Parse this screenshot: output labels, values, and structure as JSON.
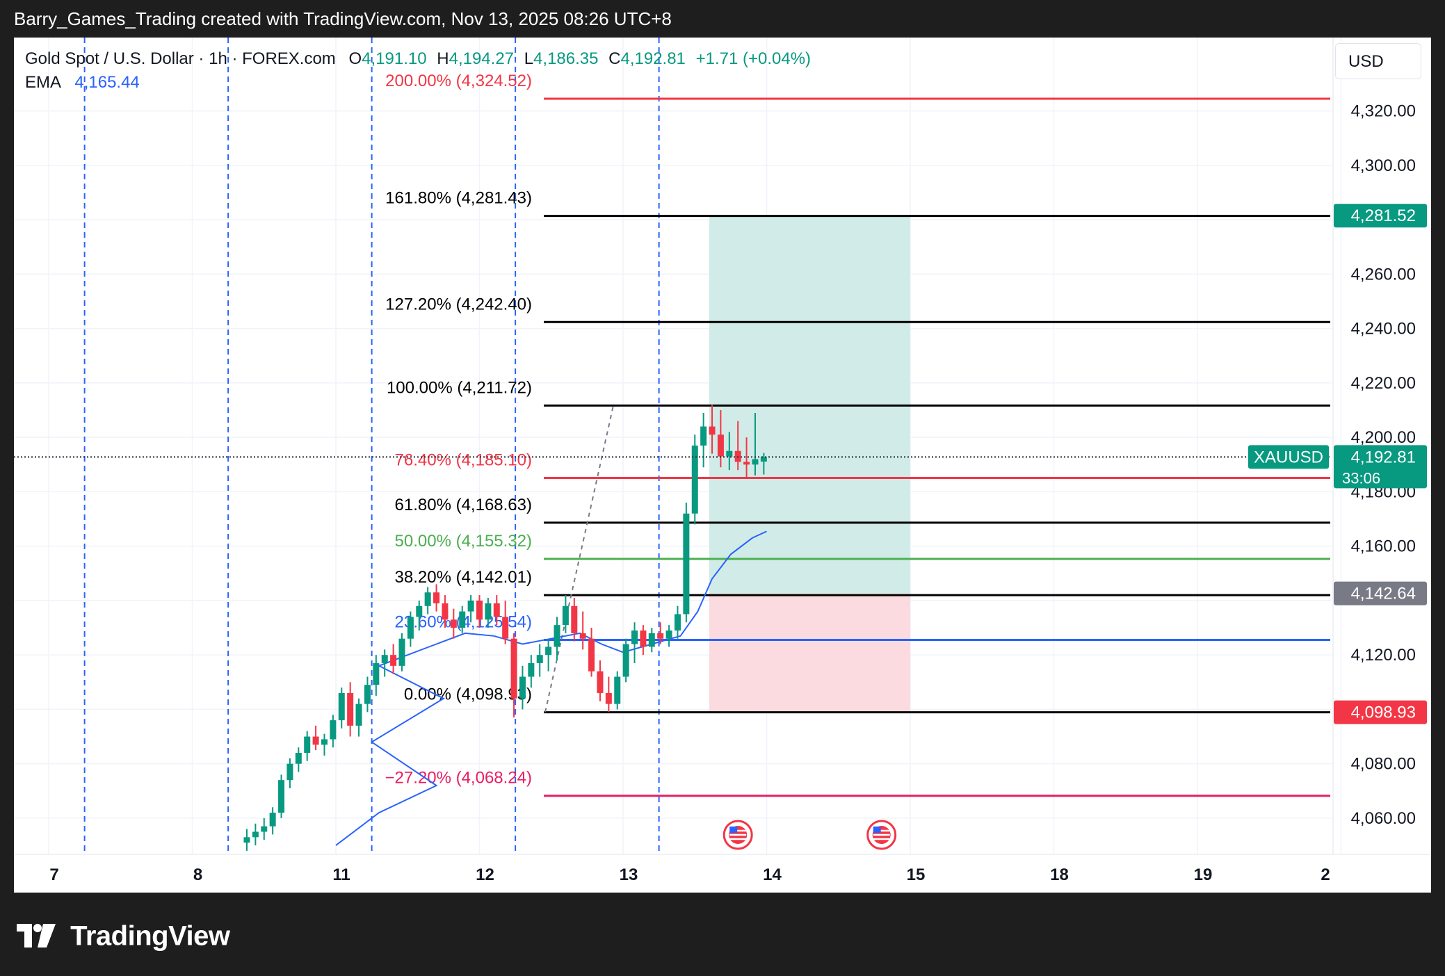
{
  "header": {
    "attribution": "Barry_Games_Trading created with TradingView.com, Nov 13, 2025 08:26 UTC+8"
  },
  "legend": {
    "symbol": "Gold Spot / U.S. Dollar · 1h · FOREX.com",
    "open_label": "O",
    "open": "4,191.10",
    "high_label": "H",
    "high": "4,194.27",
    "low_label": "L",
    "low": "4,186.35",
    "close_label": "C",
    "close": "4,192.81",
    "change": "+1.71 (+0.04%)",
    "ema_label": "EMA",
    "ema_value": "4,165.44"
  },
  "currency_button": "USD",
  "footer": {
    "brand": "TradingView"
  },
  "colors": {
    "up": "#089981",
    "down": "#f23645",
    "ema": "#2962ff",
    "fib_red": "#f23645",
    "fib_green": "#4caf50",
    "fib_blue": "#2962ff",
    "fib_pink": "#e91e63",
    "profit_zone": "#d1ece8",
    "loss_zone": "#fbdbe0"
  },
  "chart_data": {
    "type": "candlestick",
    "symbol": "XAUUSD",
    "timeframe": "1h",
    "x_axis_labels": [
      "7",
      "8",
      "11",
      "12",
      "13",
      "14",
      "15",
      "18",
      "19",
      "2"
    ],
    "ylim": [
      4050,
      4335
    ],
    "y_ticks": [
      "4,060.00",
      "4,080.00",
      "4,120.00",
      "4,160.00",
      "4,180.00",
      "4,200.00",
      "4,220.00",
      "4,240.00",
      "4,260.00",
      "4,300.00",
      "4,320.00"
    ],
    "price_badges": [
      {
        "label": "4,281.52",
        "value": 4281.52,
        "color": "#089981"
      },
      {
        "label": "4,142.64",
        "value": 4142.64,
        "color": "#787b86"
      },
      {
        "label": "4,098.93",
        "value": 4098.93,
        "color": "#f23645"
      }
    ],
    "current_price": {
      "symbol_label": "XAUUSD",
      "price": "4,192.81",
      "value": 4192.81,
      "countdown": "33:06"
    },
    "fib_levels": [
      {
        "label": "200.00% (4,324.52)",
        "value": 4324.52,
        "color": "#f23645"
      },
      {
        "label": "161.80% (4,281.43)",
        "value": 4281.43,
        "color": "#000000"
      },
      {
        "label": "127.20% (4,242.40)",
        "value": 4242.4,
        "color": "#000000"
      },
      {
        "label": "100.00% (4,211.72)",
        "value": 4211.72,
        "color": "#000000"
      },
      {
        "label": "76.40% (4,185.10)",
        "value": 4185.1,
        "color": "#f23645"
      },
      {
        "label": "61.80% (4,168.63)",
        "value": 4168.63,
        "color": "#000000"
      },
      {
        "label": "50.00% (4,155.32)",
        "value": 4155.32,
        "color": "#4caf50"
      },
      {
        "label": "38.20% (4,142.01)",
        "value": 4142.01,
        "color": "#000000"
      },
      {
        "label": "23.60% (4,125.54)",
        "value": 4125.54,
        "color": "#2962ff"
      },
      {
        "label": "0.00% (4,098.93)",
        "value": 4098.93,
        "color": "#000000"
      },
      {
        "label": "−27.20% (4,068.24)",
        "value": 4068.24,
        "color": "#e91e63"
      }
    ],
    "position": {
      "entry": 4142.64,
      "target": 4281.52,
      "stop": 4098.93,
      "start_day": 13.6,
      "end_day": 15.0
    },
    "session_dividers_day": [
      7.25,
      8.25,
      11.25,
      12.25,
      13.25
    ],
    "event_markers_day": [
      13.8,
      14.8
    ],
    "candles": [
      {
        "t": 8.38,
        "o": 4051,
        "h": 4056,
        "l": 4048,
        "c": 4053
      },
      {
        "t": 8.44,
        "o": 4053,
        "h": 4058,
        "l": 4050,
        "c": 4055
      },
      {
        "t": 8.5,
        "o": 4055,
        "h": 4060,
        "l": 4052,
        "c": 4057
      },
      {
        "t": 8.56,
        "o": 4057,
        "h": 4064,
        "l": 4054,
        "c": 4062
      },
      {
        "t": 8.62,
        "o": 4062,
        "h": 4076,
        "l": 4060,
        "c": 4074
      },
      {
        "t": 8.68,
        "o": 4074,
        "h": 4082,
        "l": 4071,
        "c": 4080
      },
      {
        "t": 8.74,
        "o": 4080,
        "h": 4086,
        "l": 4077,
        "c": 4084
      },
      {
        "t": 8.8,
        "o": 4084,
        "h": 4092,
        "l": 4081,
        "c": 4090
      },
      {
        "t": 8.86,
        "o": 4090,
        "h": 4094,
        "l": 4085,
        "c": 4087
      },
      {
        "t": 8.92,
        "o": 4087,
        "h": 4091,
        "l": 4083,
        "c": 4089
      },
      {
        "t": 8.98,
        "o": 4089,
        "h": 4098,
        "l": 4086,
        "c": 4096
      },
      {
        "t": 11.04,
        "o": 4096,
        "h": 4108,
        "l": 4093,
        "c": 4106
      },
      {
        "t": 11.1,
        "o": 4106,
        "h": 4110,
        "l": 4090,
        "c": 4094
      },
      {
        "t": 11.16,
        "o": 4094,
        "h": 4104,
        "l": 4090,
        "c": 4102
      },
      {
        "t": 11.22,
        "o": 4102,
        "h": 4112,
        "l": 4099,
        "c": 4109
      },
      {
        "t": 11.28,
        "o": 4109,
        "h": 4120,
        "l": 4105,
        "c": 4117
      },
      {
        "t": 11.34,
        "o": 4117,
        "h": 4122,
        "l": 4112,
        "c": 4120
      },
      {
        "t": 11.4,
        "o": 4120,
        "h": 4124,
        "l": 4113,
        "c": 4116
      },
      {
        "t": 11.46,
        "o": 4116,
        "h": 4128,
        "l": 4114,
        "c": 4126
      },
      {
        "t": 11.52,
        "o": 4126,
        "h": 4136,
        "l": 4123,
        "c": 4134
      },
      {
        "t": 11.58,
        "o": 4134,
        "h": 4140,
        "l": 4129,
        "c": 4138
      },
      {
        "t": 11.64,
        "o": 4138,
        "h": 4145,
        "l": 4135,
        "c": 4143
      },
      {
        "t": 11.7,
        "o": 4143,
        "h": 4146,
        "l": 4136,
        "c": 4139
      },
      {
        "t": 11.76,
        "o": 4139,
        "h": 4142,
        "l": 4130,
        "c": 4133
      },
      {
        "t": 11.82,
        "o": 4133,
        "h": 4137,
        "l": 4126,
        "c": 4130
      },
      {
        "t": 11.88,
        "o": 4130,
        "h": 4138,
        "l": 4128,
        "c": 4136
      },
      {
        "t": 11.94,
        "o": 4136,
        "h": 4142,
        "l": 4132,
        "c": 4140
      },
      {
        "t": 12.0,
        "o": 4140,
        "h": 4142,
        "l": 4130,
        "c": 4133
      },
      {
        "t": 12.06,
        "o": 4133,
        "h": 4141,
        "l": 4130,
        "c": 4139
      },
      {
        "t": 12.12,
        "o": 4139,
        "h": 4142,
        "l": 4131,
        "c": 4134
      },
      {
        "t": 12.18,
        "o": 4134,
        "h": 4140,
        "l": 4124,
        "c": 4126
      },
      {
        "t": 12.24,
        "o": 4126,
        "h": 4128,
        "l": 4097,
        "c": 4104
      },
      {
        "t": 12.3,
        "o": 4104,
        "h": 4116,
        "l": 4100,
        "c": 4112
      },
      {
        "t": 12.36,
        "o": 4112,
        "h": 4120,
        "l": 4108,
        "c": 4117
      },
      {
        "t": 12.42,
        "o": 4117,
        "h": 4124,
        "l": 4112,
        "c": 4120
      },
      {
        "t": 12.48,
        "o": 4120,
        "h": 4126,
        "l": 4114,
        "c": 4123
      },
      {
        "t": 12.54,
        "o": 4123,
        "h": 4134,
        "l": 4118,
        "c": 4131
      },
      {
        "t": 12.6,
        "o": 4131,
        "h": 4142,
        "l": 4128,
        "c": 4138
      },
      {
        "t": 12.66,
        "o": 4138,
        "h": 4141,
        "l": 4125,
        "c": 4128
      },
      {
        "t": 12.72,
        "o": 4128,
        "h": 4136,
        "l": 4122,
        "c": 4126
      },
      {
        "t": 12.78,
        "o": 4126,
        "h": 4130,
        "l": 4112,
        "c": 4114
      },
      {
        "t": 12.84,
        "o": 4114,
        "h": 4118,
        "l": 4103,
        "c": 4106
      },
      {
        "t": 12.9,
        "o": 4106,
        "h": 4112,
        "l": 4099,
        "c": 4102
      },
      {
        "t": 12.96,
        "o": 4102,
        "h": 4114,
        "l": 4100,
        "c": 4112
      },
      {
        "t": 13.02,
        "o": 4112,
        "h": 4126,
        "l": 4110,
        "c": 4124
      },
      {
        "t": 13.08,
        "o": 4124,
        "h": 4132,
        "l": 4117,
        "c": 4129
      },
      {
        "t": 13.14,
        "o": 4129,
        "h": 4131,
        "l": 4120,
        "c": 4123
      },
      {
        "t": 13.2,
        "o": 4123,
        "h": 4130,
        "l": 4121,
        "c": 4128
      },
      {
        "t": 13.26,
        "o": 4128,
        "h": 4132,
        "l": 4124,
        "c": 4126
      },
      {
        "t": 13.32,
        "o": 4126,
        "h": 4131,
        "l": 4123,
        "c": 4129
      },
      {
        "t": 13.38,
        "o": 4129,
        "h": 4138,
        "l": 4126,
        "c": 4135
      },
      {
        "t": 13.44,
        "o": 4135,
        "h": 4176,
        "l": 4132,
        "c": 4172
      },
      {
        "t": 13.5,
        "o": 4172,
        "h": 4201,
        "l": 4168,
        "c": 4197
      },
      {
        "t": 13.56,
        "o": 4197,
        "h": 4209,
        "l": 4189,
        "c": 4204
      },
      {
        "t": 13.62,
        "o": 4204,
        "h": 4212,
        "l": 4194,
        "c": 4201
      },
      {
        "t": 13.68,
        "o": 4201,
        "h": 4210,
        "l": 4189,
        "c": 4193
      },
      {
        "t": 13.74,
        "o": 4193,
        "h": 4202,
        "l": 4188,
        "c": 4195
      },
      {
        "t": 13.8,
        "o": 4195,
        "h": 4206,
        "l": 4188,
        "c": 4191
      },
      {
        "t": 13.86,
        "o": 4191,
        "h": 4200,
        "l": 4185,
        "c": 4190
      },
      {
        "t": 13.92,
        "o": 4190,
        "h": 4209,
        "l": 4186,
        "c": 4192
      },
      {
        "t": 13.98,
        "o": 4191.1,
        "h": 4194.27,
        "l": 4186.35,
        "c": 4192.81
      }
    ],
    "ema": [
      {
        "t": 9.1,
        "v": 4050
      },
      {
        "t": 9.4,
        "v": 4062
      },
      {
        "t": 9.8,
        "v": 4072
      },
      {
        "t": 10.3,
        "v": 4088
      },
      {
        "t": 10.8,
        "v": 4104
      },
      {
        "t": 11.3,
        "v": 4116
      },
      {
        "t": 11.7,
        "v": 4124
      },
      {
        "t": 11.9,
        "v": 4128
      },
      {
        "t": 12.1,
        "v": 4127
      },
      {
        "t": 12.3,
        "v": 4124
      },
      {
        "t": 12.5,
        "v": 4126
      },
      {
        "t": 12.7,
        "v": 4128
      },
      {
        "t": 12.85,
        "v": 4124
      },
      {
        "t": 13.0,
        "v": 4121
      },
      {
        "t": 13.2,
        "v": 4124
      },
      {
        "t": 13.4,
        "v": 4127
      },
      {
        "t": 13.52,
        "v": 4136
      },
      {
        "t": 13.62,
        "v": 4148
      },
      {
        "t": 13.75,
        "v": 4157
      },
      {
        "t": 13.9,
        "v": 4163
      },
      {
        "t": 14.0,
        "v": 4165.44
      }
    ]
  }
}
